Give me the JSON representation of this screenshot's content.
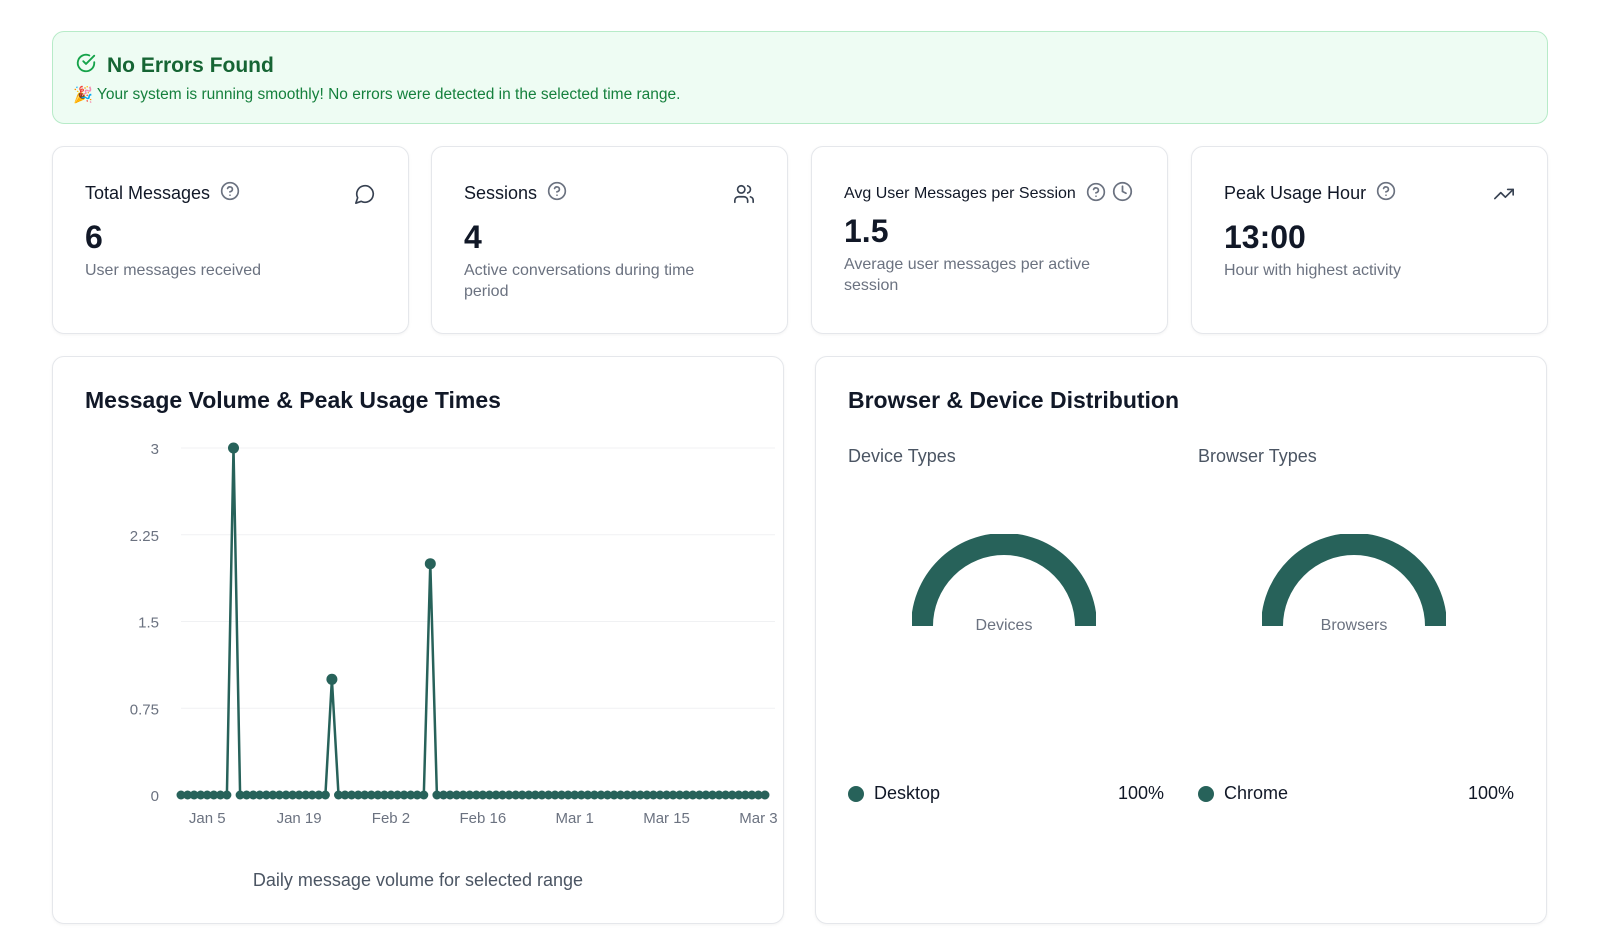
{
  "alert": {
    "title": "No Errors Found",
    "emoji": "🎉",
    "message": "Your system is running smoothly! No errors were detected in the selected time range."
  },
  "stats": [
    {
      "label": "Total Messages",
      "value": "6",
      "description": "User messages received",
      "icon": "message-circle-icon"
    },
    {
      "label": "Sessions",
      "value": "4",
      "description": "Active conversations during time period",
      "icon": "users-icon"
    },
    {
      "label": "Avg User Messages per Session",
      "value": "1.5",
      "description": "Average user messages per active session",
      "icon": "clock-icon"
    },
    {
      "label": "Peak Usage Hour",
      "value": "13:00",
      "description": "Hour with highest activity",
      "icon": "trending-up-icon"
    }
  ],
  "message_panel": {
    "title": "Message Volume & Peak Usage Times",
    "caption": "Daily message volume for selected range"
  },
  "distribution_panel": {
    "title": "Browser & Device Distribution",
    "device": {
      "title": "Device Types",
      "gauge_label": "Devices",
      "items": [
        {
          "name": "Desktop",
          "percent": "100%"
        }
      ]
    },
    "browser": {
      "title": "Browser Types",
      "gauge_label": "Browsers",
      "items": [
        {
          "name": "Chrome",
          "percent": "100%"
        }
      ]
    }
  },
  "colors": {
    "accent": "#27625a",
    "success_bg": "#eefcf3",
    "success_text": "#166534"
  },
  "chart_data": {
    "type": "line",
    "title": "Message Volume & Peak Usage Times",
    "xlabel": "",
    "ylabel": "",
    "x_tick_labels": [
      "Jan 5",
      "Jan 19",
      "Feb 2",
      "Feb 16",
      "Mar 1",
      "Mar 15",
      "Mar 3"
    ],
    "y_tick_labels": [
      "3",
      "2.25",
      "1.5",
      "0.75",
      "0"
    ],
    "ylim": [
      0,
      3
    ],
    "xlim": [
      "2025-01-01",
      "2025-03-31"
    ],
    "grid": true,
    "series": [
      {
        "points": [
          {
            "x": "2025-01-09",
            "y": 3
          },
          {
            "x": "2025-01-24",
            "y": 1
          },
          {
            "x": "2025-02-08",
            "y": 2
          }
        ],
        "baseline": 0
      }
    ]
  }
}
